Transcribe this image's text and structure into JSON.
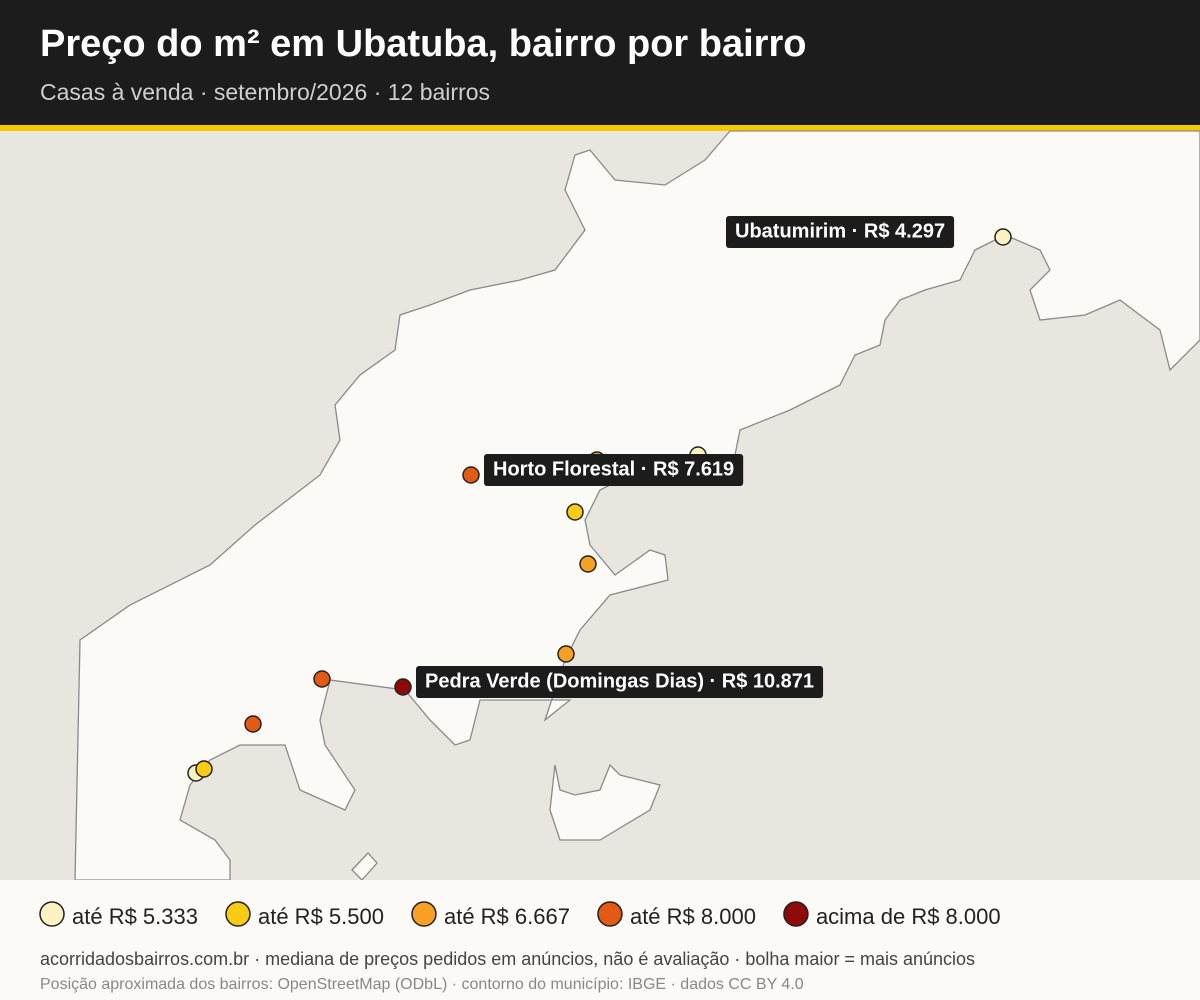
{
  "header": {
    "title": "Preço do m² em Ubatuba, bairro por bairro",
    "subtitle": "Casas à venda · setembro/2026 · 12 bairros"
  },
  "map": {
    "callouts": [
      {
        "label": "Ubatumirim · R$ 4.297"
      },
      {
        "label": "Horto Florestal · R$ 7.619"
      },
      {
        "label": "Pedra Verde (Domingas Dias) · R$ 10.871"
      }
    ]
  },
  "legend": {
    "items": [
      {
        "label": "até R$ 5.333",
        "color": "#fdf2c2"
      },
      {
        "label": "até R$ 5.500",
        "color": "#f7cc12"
      },
      {
        "label": "até R$ 6.667",
        "color": "#f7a024"
      },
      {
        "label": "até R$ 8.000",
        "color": "#e25a14"
      },
      {
        "label": "acima de R$ 8.000",
        "color": "#8e0a0a"
      }
    ]
  },
  "footer": {
    "source": "acorridadosbairros.com.br · mediana de preços pedidos em anúncios, não é avaliação · bolha maior = mais anúncios",
    "note": "Posição aproximada dos bairros: OpenStreetMap (ODbL) · contorno do município: IBGE · dados CC BY 4.0"
  }
}
